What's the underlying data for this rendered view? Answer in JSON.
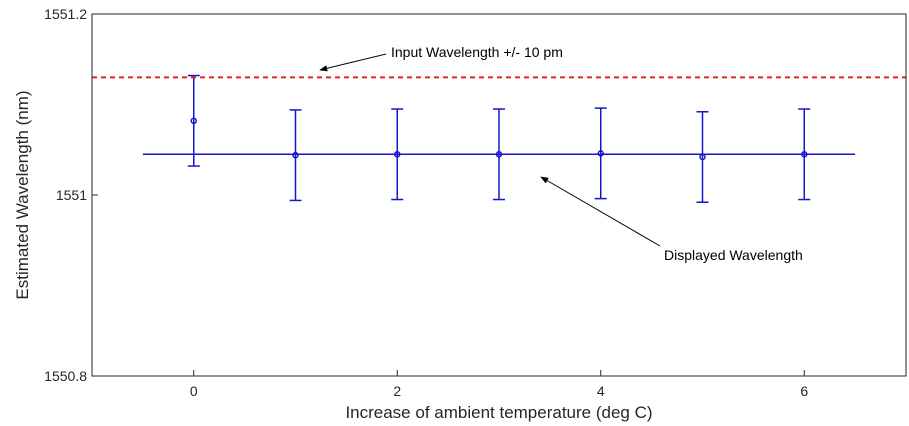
{
  "chart_data": {
    "type": "line",
    "xlabel": "Increase of ambient temperature (deg C)",
    "ylabel": "Estimated Wavelength (nm)",
    "xlim": [
      -1,
      7
    ],
    "ylim": [
      1550.8,
      1551.2
    ],
    "x_ticks": [
      0,
      2,
      4,
      6
    ],
    "y_ticks": [
      1550.8,
      1551,
      1551.2
    ],
    "y_tick_labels": [
      "1550.8",
      "1551",
      "1551.2"
    ],
    "grid": false,
    "series": [
      {
        "kind": "errorbar",
        "color": "#1515cc",
        "x": [
          0,
          1,
          2,
          3,
          4,
          5,
          6
        ],
        "y": [
          1551.082,
          1551.044,
          1551.045,
          1551.045,
          1551.046,
          1551.042,
          1551.045
        ],
        "yerr": [
          0.05,
          0.05,
          0.05,
          0.05,
          0.05,
          0.05,
          0.05
        ]
      },
      {
        "kind": "line",
        "color": "#1515cc",
        "x": [
          -0.5,
          6.5
        ],
        "y": [
          1551.045,
          1551.045
        ]
      },
      {
        "kind": "dashed-line",
        "color": "#e8231b",
        "x": [
          -1,
          7
        ],
        "y": [
          1551.13,
          1551.13
        ]
      }
    ],
    "annotations": [
      {
        "text": "Input Wavelength +/- 10 pm",
        "points_to": "dashed red line"
      },
      {
        "text": "Displayed Wavelength",
        "points_to": "solid blue line"
      }
    ]
  }
}
